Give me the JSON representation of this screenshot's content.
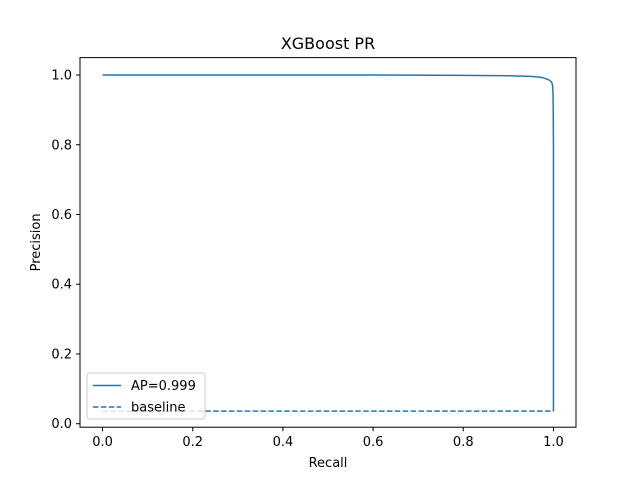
{
  "chart_data": {
    "type": "line",
    "title": "XGBoost PR",
    "xlabel": "Recall",
    "ylabel": "Precision",
    "xlim": [
      -0.05,
      1.05
    ],
    "ylim": [
      -0.01,
      1.05
    ],
    "xticks": [
      0.0,
      0.2,
      0.4,
      0.6,
      0.8,
      1.0
    ],
    "xtick_labels": [
      "0.0",
      "0.2",
      "0.4",
      "0.6",
      "0.8",
      "1.0"
    ],
    "yticks": [
      0.0,
      0.2,
      0.4,
      0.6,
      0.8,
      1.0
    ],
    "ytick_labels": [
      "0.0",
      "0.2",
      "0.4",
      "0.6",
      "0.8",
      "1.0"
    ],
    "grid": false,
    "legend_position": "lower-left",
    "series": [
      {
        "name": "AP=0.999",
        "color": "#1f77b4",
        "linestyle": "solid",
        "x": [
          0.0,
          0.2,
          0.4,
          0.6,
          0.8,
          0.9,
          0.95,
          0.97,
          0.98,
          0.99,
          0.995,
          0.997,
          0.998,
          0.999,
          0.9995,
          1.0,
          1.0,
          1.0
        ],
        "y": [
          1.0,
          1.0,
          1.0,
          1.0,
          0.999,
          0.998,
          0.996,
          0.994,
          0.991,
          0.986,
          0.981,
          0.976,
          0.97,
          0.95,
          0.9,
          0.8,
          0.3,
          0.036
        ]
      },
      {
        "name": "baseline",
        "color": "#1f77b4",
        "linestyle": "dashed",
        "x": [
          0.0,
          1.0
        ],
        "y": [
          0.036,
          0.036
        ]
      }
    ]
  }
}
